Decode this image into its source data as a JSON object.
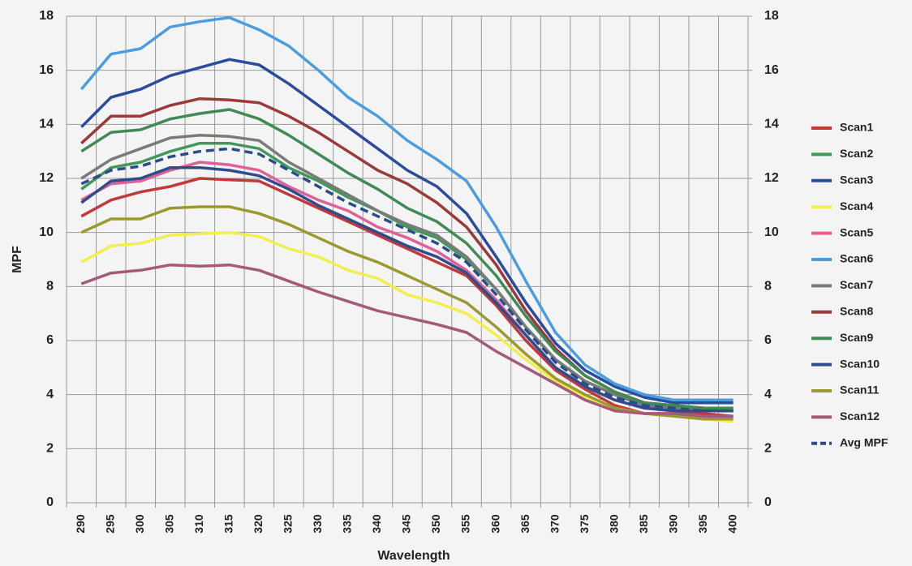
{
  "chart_data": {
    "type": "line",
    "xlabel": "Wavelength",
    "ylabel": "MPF",
    "categories": [
      "290",
      "295",
      "300",
      "305",
      "310",
      "315",
      "320",
      "325",
      "330",
      "335",
      "340",
      "345",
      "350",
      "355",
      "360",
      "365",
      "370",
      "375",
      "380",
      "385",
      "390",
      "395",
      "400"
    ],
    "ylim": [
      0,
      18
    ],
    "yticks": [
      0,
      2,
      4,
      6,
      8,
      10,
      12,
      14,
      16,
      18
    ],
    "y2lim": [
      0,
      18
    ],
    "y2ticks": [
      0,
      2,
      4,
      6,
      8,
      10,
      12,
      14,
      16,
      18
    ],
    "grid": true,
    "legend": "right",
    "series": [
      {
        "name": "Scan1",
        "color": "#c0393b",
        "values": [
          10.6,
          11.2,
          11.5,
          11.7,
          12.0,
          11.95,
          11.9,
          11.4,
          10.9,
          10.4,
          9.9,
          9.4,
          8.9,
          8.4,
          7.3,
          6.0,
          4.9,
          4.2,
          3.6,
          3.3,
          3.3,
          3.3,
          3.2
        ]
      },
      {
        "name": "Scan2",
        "color": "#3f9a5a",
        "values": [
          11.6,
          12.4,
          12.6,
          13.0,
          13.3,
          13.3,
          13.1,
          12.4,
          11.9,
          11.3,
          10.8,
          10.2,
          9.8,
          9.0,
          7.9,
          6.5,
          5.3,
          4.5,
          4.0,
          3.6,
          3.5,
          3.4,
          3.4
        ]
      },
      {
        "name": "Scan3",
        "color": "#2a4c9a",
        "values": [
          13.9,
          15.0,
          15.3,
          15.8,
          16.1,
          16.4,
          16.2,
          15.5,
          14.7,
          13.9,
          13.1,
          12.3,
          11.7,
          10.7,
          9.1,
          7.4,
          5.9,
          4.9,
          4.3,
          3.9,
          3.7,
          3.7,
          3.7
        ]
      },
      {
        "name": "Scan4",
        "color": "#f1ee50",
        "values": [
          8.9,
          9.5,
          9.6,
          9.9,
          9.95,
          10.0,
          9.85,
          9.4,
          9.1,
          8.6,
          8.3,
          7.7,
          7.4,
          7.0,
          6.2,
          5.3,
          4.5,
          3.9,
          3.5,
          3.3,
          3.2,
          3.1,
          3.0
        ]
      },
      {
        "name": "Scan5",
        "color": "#e0609a",
        "values": [
          11.2,
          11.8,
          11.9,
          12.3,
          12.6,
          12.5,
          12.3,
          11.7,
          11.2,
          10.8,
          10.2,
          9.8,
          9.3,
          8.6,
          7.5,
          6.2,
          5.0,
          4.3,
          3.8,
          3.5,
          3.4,
          3.4,
          3.4
        ]
      },
      {
        "name": "Scan6",
        "color": "#4a9ee0",
        "values": [
          15.3,
          16.6,
          16.8,
          17.6,
          17.8,
          17.95,
          17.5,
          16.9,
          16.0,
          15.0,
          14.3,
          13.4,
          12.7,
          11.9,
          10.2,
          8.2,
          6.3,
          5.1,
          4.4,
          4.0,
          3.8,
          3.8,
          3.8
        ]
      },
      {
        "name": "Scan7",
        "color": "#7a7a78",
        "values": [
          12.0,
          12.7,
          13.1,
          13.5,
          13.6,
          13.55,
          13.4,
          12.6,
          12.0,
          11.4,
          10.8,
          10.3,
          9.9,
          9.1,
          7.9,
          6.5,
          5.3,
          4.5,
          4.0,
          3.6,
          3.5,
          3.4,
          3.4
        ]
      },
      {
        "name": "Scan8",
        "color": "#9a3a3a",
        "values": [
          13.3,
          14.3,
          14.3,
          14.7,
          14.95,
          14.9,
          14.8,
          14.3,
          13.7,
          13.0,
          12.3,
          11.8,
          11.1,
          10.2,
          8.8,
          7.1,
          5.7,
          4.7,
          4.1,
          3.7,
          3.6,
          3.5,
          3.5
        ]
      },
      {
        "name": "Scan9",
        "color": "#3f8a55",
        "values": [
          13.0,
          13.7,
          13.8,
          14.2,
          14.4,
          14.55,
          14.2,
          13.6,
          12.9,
          12.2,
          11.6,
          10.9,
          10.4,
          9.6,
          8.4,
          6.9,
          5.6,
          4.7,
          4.1,
          3.7,
          3.6,
          3.5,
          3.5
        ]
      },
      {
        "name": "Scan10",
        "color": "#2e4d8a",
        "values": [
          11.1,
          11.9,
          12.0,
          12.4,
          12.4,
          12.3,
          12.1,
          11.6,
          11.0,
          10.5,
          10.0,
          9.5,
          9.1,
          8.5,
          7.4,
          6.2,
          5.0,
          4.3,
          3.8,
          3.5,
          3.4,
          3.4,
          3.4
        ]
      },
      {
        "name": "Scan11",
        "color": "#9a9a30",
        "values": [
          10.0,
          10.5,
          10.5,
          10.9,
          10.95,
          10.95,
          10.7,
          10.3,
          9.8,
          9.3,
          8.9,
          8.4,
          7.9,
          7.4,
          6.5,
          5.5,
          4.6,
          4.0,
          3.5,
          3.3,
          3.2,
          3.1,
          3.1
        ]
      },
      {
        "name": "Scan12",
        "color": "#a45a7a",
        "values": [
          8.1,
          8.5,
          8.6,
          8.8,
          8.75,
          8.8,
          8.6,
          8.2,
          7.8,
          7.45,
          7.1,
          6.85,
          6.6,
          6.3,
          5.6,
          5.0,
          4.4,
          3.8,
          3.4,
          3.3,
          3.3,
          3.2,
          3.2
        ]
      },
      {
        "name": "Avg MPF",
        "color": "#2a4c8a",
        "dashed": true,
        "values": [
          11.8,
          12.3,
          12.45,
          12.8,
          13.0,
          13.1,
          12.9,
          12.3,
          11.7,
          11.1,
          10.6,
          10.1,
          9.6,
          8.9,
          7.7,
          6.4,
          5.2,
          4.4,
          3.9,
          3.6,
          3.5,
          3.4,
          3.4
        ]
      }
    ]
  }
}
